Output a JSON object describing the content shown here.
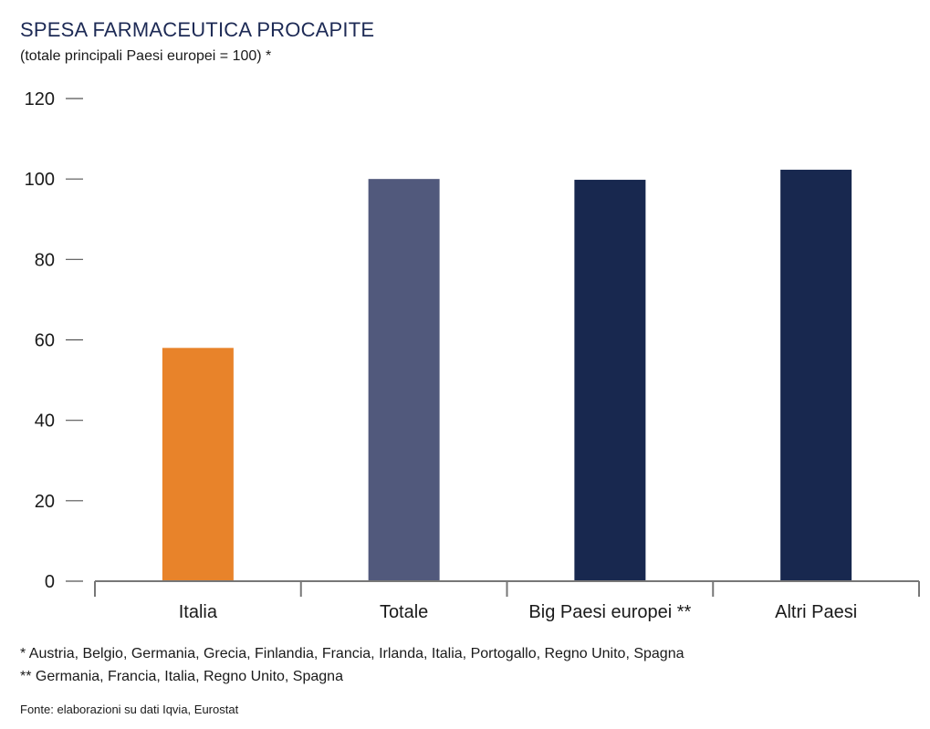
{
  "chart_data": {
    "type": "bar",
    "title": "SPESA FARMACEUTICA PROCAPITE",
    "subtitle": "(totale principali Paesi europei = 100) *",
    "categories": [
      "Italia",
      "Totale",
      "Big Paesi europei **",
      "Altri Paesi"
    ],
    "values": [
      58,
      100,
      99.8,
      102.3
    ],
    "colors": [
      "#e8832a",
      "#51597c",
      "#18284f",
      "#18284f"
    ],
    "ylim": [
      0,
      120
    ],
    "yticks": [
      0,
      20,
      40,
      60,
      80,
      100,
      120
    ],
    "xlabel": "",
    "ylabel": "",
    "grid": false,
    "legend": "none"
  },
  "notes": [
    "* Austria, Belgio, Germania, Grecia, Finlandia, Francia, Irlanda, Italia, Portogallo, Regno Unito, Spagna",
    "** Germania, Francia, Italia, Regno Unito, Spagna"
  ],
  "source": "Fonte: elaborazioni su dati Iqvia, Eurostat"
}
